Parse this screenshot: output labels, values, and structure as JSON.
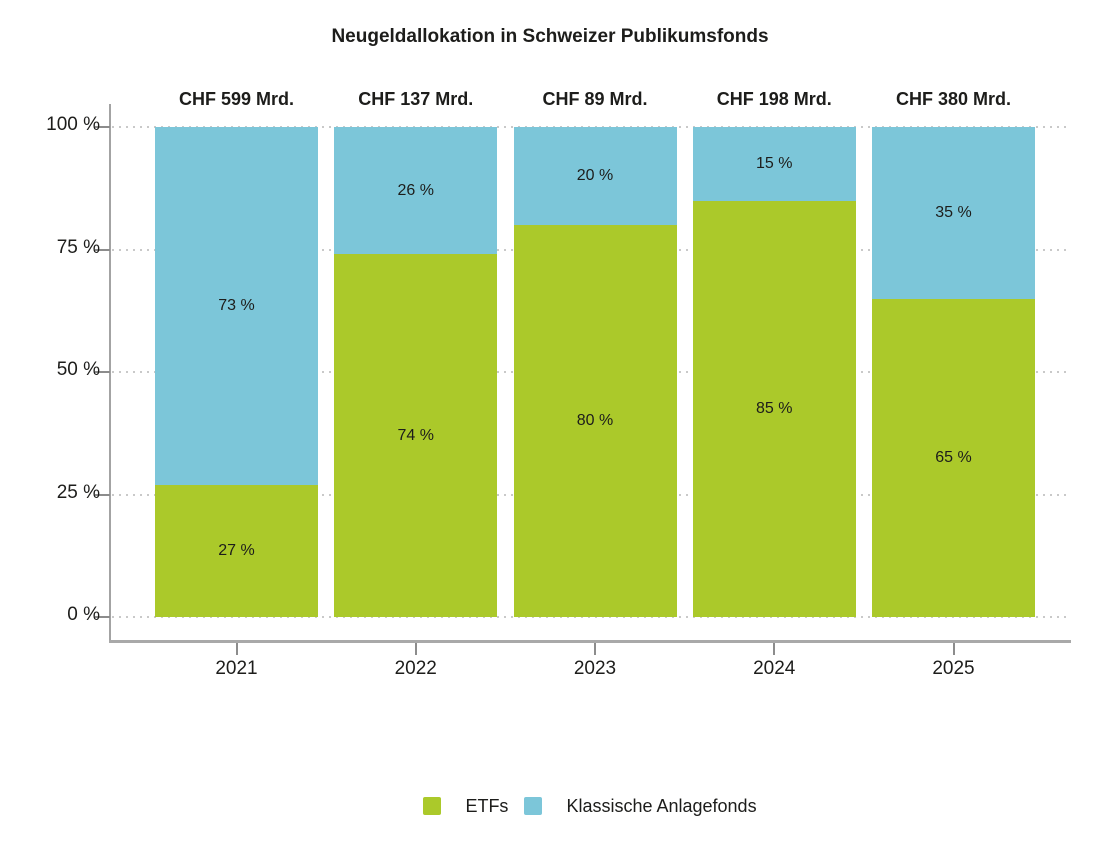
{
  "chart_data": {
    "type": "bar",
    "variant": "stacked-percent",
    "title": "Neugeldallokation in Schweizer Publikumsfonds",
    "categories": [
      "2021",
      "2022",
      "2023",
      "2024",
      "2025"
    ],
    "totals_above_bars": [
      "CHF 599 Mrd.",
      "CHF 137 Mrd.",
      "CHF 89 Mrd.",
      "CHF 198 Mrd.",
      "CHF 380 Mrd."
    ],
    "series": [
      {
        "name": "ETFs",
        "color": "#abc92a",
        "values": [
          27,
          74,
          80,
          85,
          65
        ]
      },
      {
        "name": "Klassische Anlagefonds",
        "color": "#7cc6d9",
        "values": [
          73,
          26,
          20,
          15,
          35
        ]
      }
    ],
    "value_suffix": " %",
    "y_axis": {
      "ticks": [
        0,
        25,
        50,
        75,
        100
      ],
      "suffix": " %",
      "range": [
        0,
        100
      ]
    },
    "grid": "horizontal-dotted",
    "legend_position": "bottom"
  },
  "colors": {
    "etfs_green": "#abc92a",
    "klassische_blue": "#7cc6d9",
    "text": "#1d1d1b",
    "axis_line": "#a3a3a3",
    "tick_mark": "#8c8c8c",
    "gridline": "#c9c9c9",
    "background": "#ffffff"
  }
}
